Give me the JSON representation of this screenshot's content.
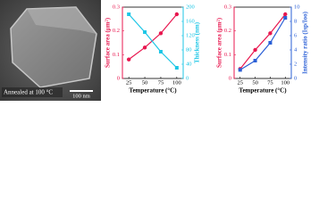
{
  "image": {
    "annotation": "Annealed at 100 °C",
    "scale_bar": "100 nm"
  },
  "chart_data": [
    {
      "type": "line",
      "x_label": "Temperature (°C)",
      "y_label": "Surface area (μm²)",
      "y2_label": "Thickness (nm)",
      "x": [
        25,
        50,
        75,
        100
      ],
      "xlim": [
        15,
        110
      ],
      "xticks": [
        25,
        50,
        75,
        100
      ],
      "ylim": [
        0,
        0.3
      ],
      "yticks": [
        0,
        0.1,
        0.2,
        0.3
      ],
      "y2lim": [
        0,
        200
      ],
      "y2ticks": [
        0,
        40,
        80,
        120,
        160,
        200
      ],
      "series": [
        {
          "color": "#e8174f",
          "values": [
            0.08,
            0.13,
            0.19,
            0.27
          ]
        },
        {
          "color": "#1cc6e6",
          "axis": "y2",
          "values": [
            180,
            130,
            75,
            30
          ]
        }
      ]
    },
    {
      "type": "line",
      "x_label": "Temperature (°C)",
      "y_label": "Surface area (μm²)",
      "y2_label": "Intensity ratio (Isp/Ioo)",
      "x": [
        25,
        50,
        75,
        100
      ],
      "xlim": [
        15,
        110
      ],
      "xticks": [
        25,
        50,
        75,
        100
      ],
      "ylim": [
        0,
        0.3
      ],
      "yticks": [
        0,
        0.1,
        0.2,
        0.3
      ],
      "y2lim": [
        0,
        10
      ],
      "y2ticks": [
        0,
        2,
        4,
        6,
        8,
        10
      ],
      "series": [
        {
          "color": "#e8174f",
          "values": [
            0.04,
            0.12,
            0.19,
            0.27
          ]
        },
        {
          "color": "#2a5fd6",
          "axis": "y2",
          "values": [
            1.2,
            2.5,
            5,
            8.5
          ]
        }
      ]
    }
  ]
}
